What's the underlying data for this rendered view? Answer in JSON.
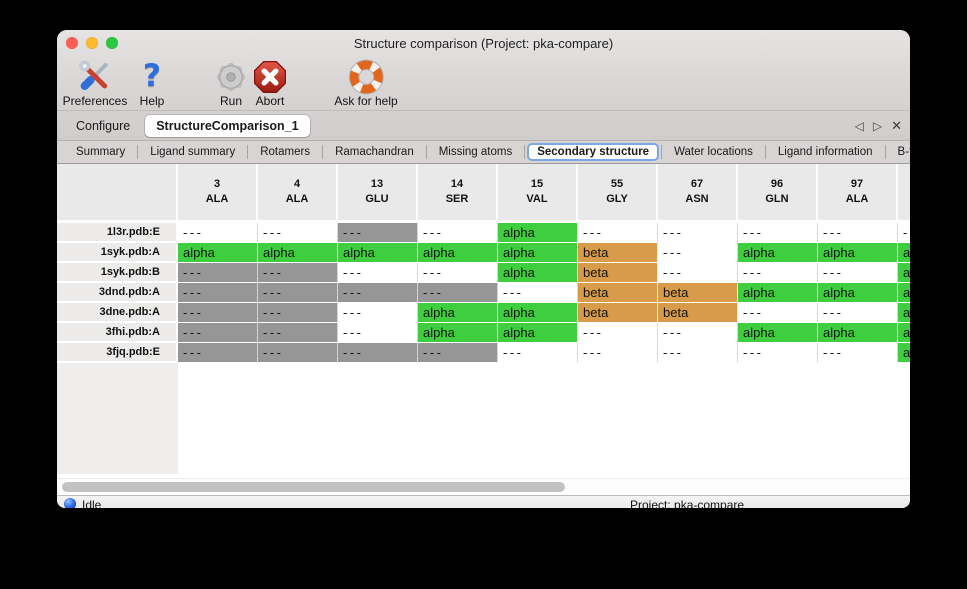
{
  "window": {
    "title": "Structure comparison (Project: pka-compare)"
  },
  "toolbar": {
    "items": [
      {
        "label": "Preferences",
        "icon": "tools-icon"
      },
      {
        "label": "Help",
        "icon": "question-mark-icon",
        "glyph": "?"
      },
      {
        "label": "Run",
        "icon": "gear-icon"
      },
      {
        "label": "Abort",
        "icon": "stop-x-icon"
      },
      {
        "label": "Ask for help",
        "icon": "lifebuoy-icon"
      }
    ]
  },
  "tabs": {
    "items": [
      {
        "label": "Configure",
        "active": false
      },
      {
        "label": "StructureComparison_1",
        "active": true
      }
    ],
    "nav": {
      "prev": "◁",
      "next": "▷",
      "close": "✕"
    }
  },
  "subtabs": {
    "items": [
      "Summary",
      "Ligand summary",
      "Rotamers",
      "Ramachandran",
      "Missing atoms",
      "Secondary structure",
      "Water locations",
      "Ligand information",
      "B-factors"
    ],
    "active_index": 5,
    "nav": {
      "prev": "◁",
      "next": "▷"
    }
  },
  "table": {
    "columns": [
      {
        "num": "3",
        "res": "ALA"
      },
      {
        "num": "4",
        "res": "ALA"
      },
      {
        "num": "13",
        "res": "GLU"
      },
      {
        "num": "14",
        "res": "SER"
      },
      {
        "num": "15",
        "res": "VAL"
      },
      {
        "num": "55",
        "res": "GLY"
      },
      {
        "num": "67",
        "res": "ASN"
      },
      {
        "num": "96",
        "res": "GLN"
      },
      {
        "num": "97",
        "res": "ALA"
      },
      {
        "num": "",
        "res": ""
      }
    ],
    "rows": [
      {
        "name": "1l3r.pdb:E",
        "cells": [
          {
            "text": "---",
            "style": "white"
          },
          {
            "text": "---",
            "style": "white"
          },
          {
            "text": "---",
            "style": "gray"
          },
          {
            "text": "---",
            "style": "white"
          },
          {
            "text": "alpha",
            "style": "green"
          },
          {
            "text": "---",
            "style": "white"
          },
          {
            "text": "---",
            "style": "white"
          },
          {
            "text": "---",
            "style": "white"
          },
          {
            "text": "---",
            "style": "white"
          },
          {
            "text": "---",
            "style": "white"
          }
        ]
      },
      {
        "name": "1syk.pdb:A",
        "cells": [
          {
            "text": "alpha",
            "style": "green"
          },
          {
            "text": "alpha",
            "style": "green"
          },
          {
            "text": "alpha",
            "style": "green"
          },
          {
            "text": "alpha",
            "style": "green"
          },
          {
            "text": "alpha",
            "style": "green"
          },
          {
            "text": "beta",
            "style": "orange"
          },
          {
            "text": "---",
            "style": "white"
          },
          {
            "text": "alpha",
            "style": "green"
          },
          {
            "text": "alpha",
            "style": "green"
          },
          {
            "text": "alpha",
            "style": "green"
          }
        ]
      },
      {
        "name": "1syk.pdb:B",
        "cells": [
          {
            "text": "---",
            "style": "gray"
          },
          {
            "text": "---",
            "style": "gray"
          },
          {
            "text": "---",
            "style": "white"
          },
          {
            "text": "---",
            "style": "white"
          },
          {
            "text": "alpha",
            "style": "green"
          },
          {
            "text": "beta",
            "style": "orange"
          },
          {
            "text": "---",
            "style": "white"
          },
          {
            "text": "---",
            "style": "white"
          },
          {
            "text": "---",
            "style": "white"
          },
          {
            "text": "alpha",
            "style": "green"
          }
        ]
      },
      {
        "name": "3dnd.pdb:A",
        "cells": [
          {
            "text": "---",
            "style": "gray"
          },
          {
            "text": "---",
            "style": "gray"
          },
          {
            "text": "---",
            "style": "gray"
          },
          {
            "text": "---",
            "style": "gray"
          },
          {
            "text": "---",
            "style": "white"
          },
          {
            "text": "beta",
            "style": "orange"
          },
          {
            "text": "beta",
            "style": "orange"
          },
          {
            "text": "alpha",
            "style": "green"
          },
          {
            "text": "alpha",
            "style": "green"
          },
          {
            "text": "alpha",
            "style": "green"
          }
        ]
      },
      {
        "name": "3dne.pdb:A",
        "cells": [
          {
            "text": "---",
            "style": "gray"
          },
          {
            "text": "---",
            "style": "gray"
          },
          {
            "text": "---",
            "style": "white"
          },
          {
            "text": "alpha",
            "style": "green"
          },
          {
            "text": "alpha",
            "style": "green"
          },
          {
            "text": "beta",
            "style": "orange"
          },
          {
            "text": "beta",
            "style": "orange"
          },
          {
            "text": "---",
            "style": "white"
          },
          {
            "text": "---",
            "style": "white"
          },
          {
            "text": "alpha",
            "style": "green"
          }
        ]
      },
      {
        "name": "3fhi.pdb:A",
        "cells": [
          {
            "text": "---",
            "style": "gray"
          },
          {
            "text": "---",
            "style": "gray"
          },
          {
            "text": "---",
            "style": "white"
          },
          {
            "text": "alpha",
            "style": "green"
          },
          {
            "text": "alpha",
            "style": "green"
          },
          {
            "text": "---",
            "style": "white"
          },
          {
            "text": "---",
            "style": "white"
          },
          {
            "text": "alpha",
            "style": "green"
          },
          {
            "text": "alpha",
            "style": "green"
          },
          {
            "text": "alpha",
            "style": "green"
          }
        ]
      },
      {
        "name": "3fjq.pdb:E",
        "cells": [
          {
            "text": "---",
            "style": "gray"
          },
          {
            "text": "---",
            "style": "gray"
          },
          {
            "text": "---",
            "style": "gray"
          },
          {
            "text": "---",
            "style": "gray"
          },
          {
            "text": "---",
            "style": "white"
          },
          {
            "text": "---",
            "style": "white"
          },
          {
            "text": "---",
            "style": "white"
          },
          {
            "text": "---",
            "style": "white"
          },
          {
            "text": "---",
            "style": "white"
          },
          {
            "text": "alpha",
            "style": "green"
          }
        ]
      }
    ]
  },
  "statusbar": {
    "status": "Idle",
    "project": "Project: pka-compare"
  },
  "colors": {
    "alpha_green": "#3fce3f",
    "beta_orange": "#d79b4a",
    "missing_gray": "#969696",
    "cell_white": "#ffffff",
    "active_tab_border": "#7aa9e6"
  }
}
